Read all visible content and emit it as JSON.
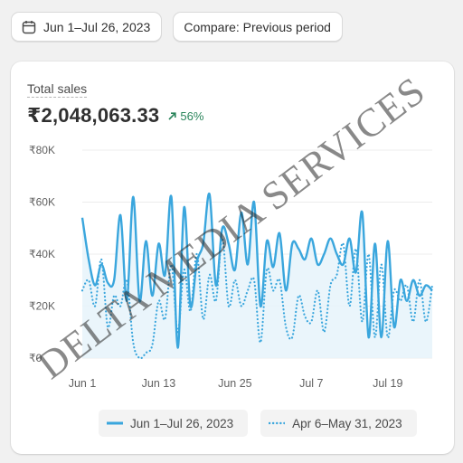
{
  "toolbar": {
    "date_range_label": "Jun 1–Jul 26, 2023",
    "compare_label": "Compare: Previous period"
  },
  "metric": {
    "label": "Total sales",
    "value": "₹2,048,063.33",
    "change": "56%",
    "change_direction": "up",
    "change_color": "#29845a"
  },
  "colors": {
    "current_series": "#3aa6dd",
    "previous_series": "#3aa6dd",
    "area_fill": "#e8f4fb",
    "grid": "#ececec"
  },
  "watermark": {
    "text": "DELTA MEDIA SERVICES"
  },
  "chart_data": {
    "type": "line",
    "ylim": [
      0,
      80000
    ],
    "y_ticks": [
      0,
      20000,
      40000,
      60000,
      80000
    ],
    "y_tick_labels": [
      "₹0",
      "₹20K",
      "₹40K",
      "₹60K",
      "₹80K"
    ],
    "x_tick_labels": [
      "Jun 1",
      "Jun 13",
      "Jun 25",
      "Jul 7",
      "Jul 19"
    ],
    "x_tick_days": [
      0,
      12,
      24,
      36,
      48
    ],
    "grid": true,
    "legend_position": "bottom",
    "series": [
      {
        "name": "Jun 1–Jul 26, 2023",
        "style": "solid",
        "values": [
          54000,
          38000,
          28000,
          36000,
          29000,
          30000,
          55000,
          22000,
          62000,
          22000,
          45000,
          24000,
          44000,
          32000,
          62000,
          4000,
          58000,
          20000,
          37000,
          44000,
          63000,
          28000,
          50000,
          44000,
          34000,
          56000,
          36000,
          60000,
          20000,
          45000,
          35000,
          48000,
          26000,
          44000,
          42000,
          38000,
          46000,
          36000,
          40000,
          46000,
          40000,
          36000,
          46000,
          33000,
          56000,
          8000,
          44000,
          8000,
          45000,
          12000,
          30000,
          22000,
          30000,
          24000,
          28000,
          26000
        ]
      },
      {
        "name": "Apr 6–May 31, 2023",
        "style": "dotted",
        "values": [
          26000,
          30000,
          20000,
          38000,
          12000,
          24000,
          20000,
          30000,
          6000,
          0,
          2000,
          5000,
          22000,
          15000,
          36000,
          10000,
          34000,
          18000,
          40000,
          15000,
          32000,
          22000,
          46000,
          20000,
          30000,
          20000,
          26000,
          30000,
          6000,
          34000,
          26000,
          30000,
          12000,
          8000,
          24000,
          16000,
          14000,
          26000,
          10000,
          28000,
          32000,
          44000,
          20000,
          42000,
          14000,
          40000,
          8000,
          36000,
          8000,
          26000,
          22000,
          28000,
          14000,
          30000,
          14000,
          28000
        ]
      }
    ]
  }
}
